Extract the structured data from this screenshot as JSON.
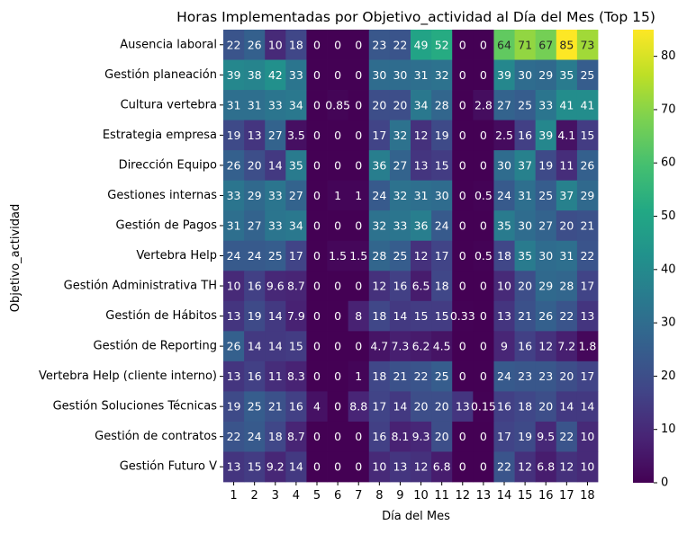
{
  "chart_data": {
    "type": "heatmap",
    "title": "Horas Implementadas por Objetivo_actividad al Día del Mes (Top 15)",
    "xlabel": "Día del Mes",
    "ylabel": "Objetivo_actividad",
    "colormap": "viridis",
    "color_range": [
      0,
      85
    ],
    "colorbar_ticks": [
      0,
      10,
      20,
      30,
      40,
      50,
      60,
      70,
      80
    ],
    "x": [
      "1",
      "2",
      "3",
      "4",
      "5",
      "6",
      "7",
      "8",
      "9",
      "10",
      "11",
      "12",
      "13",
      "14",
      "15",
      "16",
      "17",
      "18"
    ],
    "y": [
      "Ausencia laboral",
      "Gestión planeación",
      "Cultura vertebra",
      "Estrategia empresa",
      "Dirección Equipo",
      "Gestiones internas",
      "Gestión de Pagos",
      "Vertebra Help",
      "Gestión Administrativa TH",
      "Gestión de Hábitos",
      "Gestión de Reporting",
      "Vertebra Help (cliente interno)",
      "Gestión Soluciones Técnicas",
      "Gestión de contratos",
      "Gestión Futuro V"
    ],
    "values": [
      [
        22,
        26,
        10,
        18,
        0,
        0,
        0,
        23,
        22,
        49,
        52,
        0,
        0,
        64,
        71,
        67,
        85,
        73
      ],
      [
        39,
        38,
        42,
        33,
        0,
        0,
        0,
        30,
        30,
        31,
        32,
        0,
        0,
        39,
        30,
        29,
        35,
        25
      ],
      [
        31,
        31,
        33,
        34,
        0,
        0.85,
        0,
        20,
        20,
        34,
        28,
        0,
        2.8,
        27,
        25,
        33,
        41,
        41
      ],
      [
        19,
        13,
        27,
        3.5,
        0,
        0,
        0,
        17,
        32,
        12,
        19,
        0,
        0,
        2.5,
        16,
        39,
        4.1,
        15
      ],
      [
        26,
        20,
        14,
        35,
        0,
        0,
        0,
        36,
        27,
        13,
        15,
        0,
        0,
        30,
        37,
        19,
        11,
        26
      ],
      [
        33,
        29,
        33,
        27,
        0,
        1,
        1,
        24,
        32,
        31,
        30,
        0,
        0.5,
        24,
        31,
        25,
        37,
        29
      ],
      [
        31,
        27,
        33,
        34,
        0,
        0,
        0,
        32,
        33,
        36,
        24,
        0,
        0,
        35,
        30,
        27,
        20,
        21
      ],
      [
        24,
        24,
        25,
        17,
        0,
        1.5,
        1.5,
        28,
        25,
        12,
        17,
        0,
        0.5,
        18,
        35,
        30,
        31,
        22
      ],
      [
        10,
        16,
        9.6,
        8.7,
        0,
        0,
        0,
        12,
        16,
        6.5,
        18,
        0,
        0,
        10,
        20,
        29,
        28,
        17
      ],
      [
        13,
        19,
        14,
        7.9,
        0,
        0,
        8,
        18,
        14,
        15,
        15,
        0.33,
        0,
        13,
        21,
        26,
        22,
        13
      ],
      [
        26,
        14,
        14,
        15,
        0,
        0,
        0,
        4.7,
        7.3,
        6.2,
        4.5,
        0,
        0,
        9,
        16,
        12,
        7.2,
        1.8
      ],
      [
        13,
        16,
        11,
        8.3,
        0,
        0,
        1,
        18,
        21,
        22,
        25,
        0,
        0,
        24,
        23,
        23,
        20,
        17
      ],
      [
        19,
        25,
        21,
        16,
        4,
        0,
        8.8,
        17,
        14,
        20,
        20,
        13,
        0.15,
        16,
        18,
        20,
        14,
        14
      ],
      [
        22,
        24,
        18,
        8.7,
        0,
        0,
        0,
        16,
        8.1,
        9.3,
        20,
        0,
        0,
        17,
        19,
        9.5,
        22,
        10
      ],
      [
        13,
        15,
        9.2,
        14,
        0,
        0,
        0,
        10,
        13,
        12,
        6.8,
        0,
        0,
        22,
        12,
        6.8,
        12,
        10
      ]
    ],
    "labels": [
      [
        "22",
        "26",
        "10",
        "18",
        "0",
        "0",
        "0",
        "23",
        "22",
        "49",
        "52",
        "0",
        "0",
        "64",
        "71",
        "67",
        "85",
        "73"
      ],
      [
        "39",
        "38",
        "42",
        "33",
        "0",
        "0",
        "0",
        "30",
        "30",
        "31",
        "32",
        "0",
        "0",
        "39",
        "30",
        "29",
        "35",
        "25"
      ],
      [
        "31",
        "31",
        "33",
        "34",
        "0",
        "0.85",
        "0",
        "20",
        "20",
        "34",
        "28",
        "0",
        "2.8",
        "27",
        "25",
        "33",
        "41",
        "41"
      ],
      [
        "19",
        "13",
        "27",
        "3.5",
        "0",
        "0",
        "0",
        "17",
        "32",
        "12",
        "19",
        "0",
        "0",
        "2.5",
        "16",
        "39",
        "4.1",
        "15"
      ],
      [
        "26",
        "20",
        "14",
        "35",
        "0",
        "0",
        "0",
        "36",
        "27",
        "13",
        "15",
        "0",
        "0",
        "30",
        "37",
        "19",
        "11",
        "26"
      ],
      [
        "33",
        "29",
        "33",
        "27",
        "0",
        "1",
        "1",
        "24",
        "32",
        "31",
        "30",
        "0",
        "0.5",
        "24",
        "31",
        "25",
        "37",
        "29"
      ],
      [
        "31",
        "27",
        "33",
        "34",
        "0",
        "0",
        "0",
        "32",
        "33",
        "36",
        "24",
        "0",
        "0",
        "35",
        "30",
        "27",
        "20",
        "21"
      ],
      [
        "24",
        "24",
        "25",
        "17",
        "0",
        "1.5",
        "1.5",
        "28",
        "25",
        "12",
        "17",
        "0",
        "0.5",
        "18",
        "35",
        "30",
        "31",
        "22"
      ],
      [
        "10",
        "16",
        "9.6",
        "8.7",
        "0",
        "0",
        "0",
        "12",
        "16",
        "6.5",
        "18",
        "0",
        "0",
        "10",
        "20",
        "29",
        "28",
        "17"
      ],
      [
        "13",
        "19",
        "14",
        "7.9",
        "0",
        "0",
        "8",
        "18",
        "14",
        "15",
        "15",
        "0.33",
        "0",
        "13",
        "21",
        "26",
        "22",
        "13"
      ],
      [
        "26",
        "14",
        "14",
        "15",
        "0",
        "0",
        "0",
        "4.7",
        "7.3",
        "6.2",
        "4.5",
        "0",
        "0",
        "9",
        "16",
        "12",
        "7.2",
        "1.8"
      ],
      [
        "13",
        "16",
        "11",
        "8.3",
        "0",
        "0",
        "1",
        "18",
        "21",
        "22",
        "25",
        "0",
        "0",
        "24",
        "23",
        "23",
        "20",
        "17"
      ],
      [
        "19",
        "25",
        "21",
        "16",
        "4",
        "0",
        "8.8",
        "17",
        "14",
        "20",
        "20",
        "13",
        "0.15",
        "16",
        "18",
        "20",
        "14",
        "14"
      ],
      [
        "22",
        "24",
        "18",
        "8.7",
        "0",
        "0",
        "0",
        "16",
        "8.1",
        "9.3",
        "20",
        "0",
        "0",
        "17",
        "19",
        "9.5",
        "22",
        "10"
      ],
      [
        "13",
        "15",
        "9.2",
        "14",
        "0",
        "0",
        "0",
        "10",
        "13",
        "12",
        "6.8",
        "0",
        "0",
        "22",
        "12",
        "6.8",
        "12",
        "10"
      ]
    ]
  }
}
